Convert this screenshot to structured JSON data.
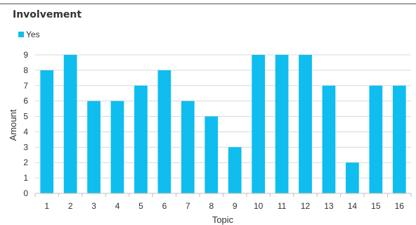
{
  "chart_data": {
    "type": "bar",
    "title": "Involvement",
    "xlabel": "Topic",
    "ylabel": "Amount",
    "categories": [
      "1",
      "2",
      "3",
      "4",
      "5",
      "6",
      "7",
      "8",
      "9",
      "10",
      "11",
      "12",
      "13",
      "14",
      "15",
      "16"
    ],
    "series": [
      {
        "name": "Yes",
        "color": "#0FBDEF",
        "values": [
          8,
          9,
          6,
          6,
          7,
          8,
          6,
          5,
          3,
          9,
          9,
          9,
          7,
          2,
          7,
          7
        ]
      }
    ],
    "ylim": [
      0,
      9
    ],
    "yticks": [
      "0",
      "1",
      "2",
      "3",
      "4",
      "5",
      "6",
      "7",
      "8",
      "9"
    ],
    "grid": true,
    "legend_position": "top-left"
  }
}
